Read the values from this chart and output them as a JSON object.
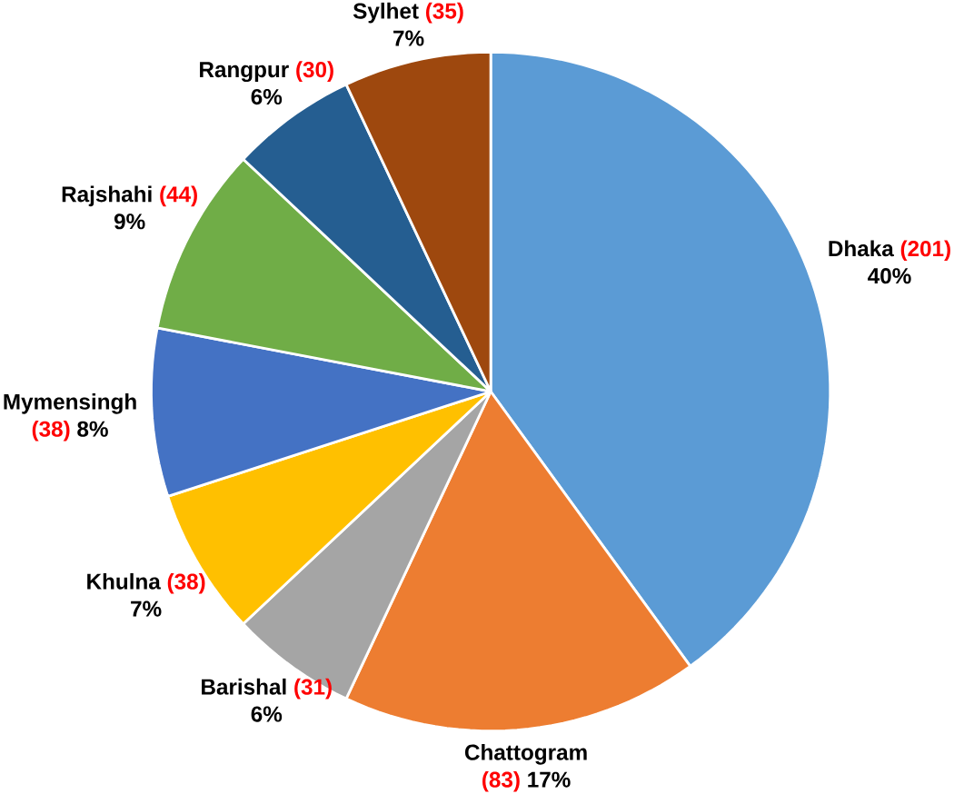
{
  "chart_data": {
    "type": "pie",
    "categories": [
      "Dhaka",
      "Chattogram",
      "Barishal",
      "Khulna",
      "Mymensingh",
      "Rajshahi",
      "Rangpur",
      "Sylhet"
    ],
    "values": [
      40,
      17,
      6,
      7,
      8,
      9,
      6,
      7
    ],
    "colors": [
      "#5b9bd5",
      "#ed7d31",
      "#a5a5a5",
      "#ffc000",
      "#4472c4",
      "#70ad47",
      "#255e91",
      "#9e480e"
    ],
    "value_labels": [
      "40%",
      "17%",
      "6%",
      "7%",
      "8%",
      "9%",
      "6%",
      "7%"
    ],
    "annotations": [
      "(201)",
      "(83)",
      "(31)",
      "(38)",
      "(38)",
      "(44)",
      "(30)",
      "(35)"
    ]
  }
}
